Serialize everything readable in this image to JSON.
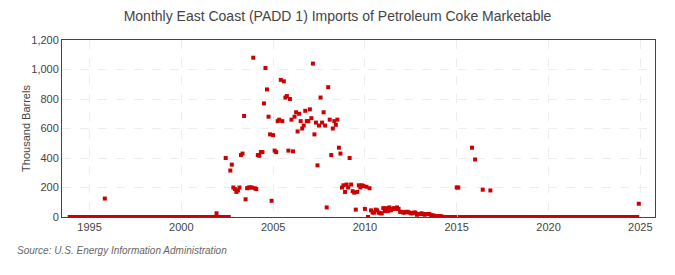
{
  "chart_data": {
    "type": "scatter",
    "title": "Monthly East Coast (PADD 1) Imports of Petroleum Coke Marketable",
    "ylabel": "Thousand Barrels",
    "annotations": [
      "Source: U.S. Energy Information Administration"
    ],
    "color": "#cc0000",
    "marker": "square",
    "grid": true,
    "xlim": [
      1993.5,
      2025.8
    ],
    "xticks": [
      1995,
      2000,
      2005,
      2010,
      2015,
      2020,
      2025
    ],
    "ylim": [
      0,
      1200
    ],
    "yticks": [
      0,
      200,
      400,
      600,
      800,
      {
        "value": 1000,
        "label": "1,000"
      },
      {
        "value": 1200,
        "label": "1,200"
      }
    ],
    "x": [
      1993.917,
      1994.0,
      1994.083,
      1994.167,
      1994.25,
      1994.333,
      1994.417,
      1994.5,
      1994.583,
      1994.667,
      1994.75,
      1994.833,
      1994.917,
      1995.0,
      1995.083,
      1995.167,
      1995.25,
      1995.333,
      1995.417,
      1995.5,
      1995.583,
      1995.667,
      1995.75,
      1995.833,
      1995.917,
      1996.0,
      1996.083,
      1996.167,
      1996.25,
      1996.333,
      1996.417,
      1996.5,
      1996.583,
      1996.667,
      1996.75,
      1996.833,
      1996.917,
      1997.0,
      1997.083,
      1997.167,
      1997.25,
      1997.333,
      1997.417,
      1997.5,
      1997.583,
      1997.667,
      1997.75,
      1997.833,
      1997.917,
      1998.0,
      1998.083,
      1998.167,
      1998.25,
      1998.333,
      1998.417,
      1998.5,
      1998.583,
      1998.667,
      1998.75,
      1998.833,
      1998.917,
      1999.0,
      1999.083,
      1999.167,
      1999.25,
      1999.333,
      1999.417,
      1999.5,
      1999.583,
      1999.667,
      1999.75,
      1999.833,
      1999.917,
      2000.0,
      2000.083,
      2000.167,
      2000.25,
      2000.333,
      2000.417,
      2000.5,
      2000.583,
      2000.667,
      2000.75,
      2000.833,
      2000.917,
      2001.0,
      2001.083,
      2001.167,
      2001.25,
      2001.333,
      2001.417,
      2001.5,
      2001.583,
      2001.667,
      2001.75,
      2001.833,
      2001.917,
      2002.0,
      2002.083,
      2002.167,
      2002.25,
      2002.333,
      2002.417,
      2002.5,
      2002.583,
      2002.667,
      2002.75,
      2002.833,
      2002.917,
      2003.0,
      2003.083,
      2003.167,
      2003.25,
      2003.333,
      2003.417,
      2003.5,
      2003.583,
      2003.667,
      2003.75,
      2003.833,
      2003.917,
      2004.0,
      2004.083,
      2004.167,
      2004.25,
      2004.333,
      2004.417,
      2004.5,
      2004.583,
      2004.667,
      2004.75,
      2004.833,
      2004.917,
      2005.0,
      2005.083,
      2005.167,
      2005.25,
      2005.333,
      2005.417,
      2005.5,
      2005.583,
      2005.667,
      2005.75,
      2005.833,
      2005.917,
      2006.0,
      2006.083,
      2006.167,
      2006.25,
      2006.333,
      2006.417,
      2006.5,
      2006.583,
      2006.667,
      2006.75,
      2006.833,
      2006.917,
      2007.0,
      2007.083,
      2007.167,
      2007.25,
      2007.333,
      2007.417,
      2007.5,
      2007.583,
      2007.667,
      2007.75,
      2007.833,
      2007.917,
      2008.0,
      2008.083,
      2008.167,
      2008.25,
      2008.333,
      2008.417,
      2008.5,
      2008.583,
      2008.667,
      2008.75,
      2008.833,
      2008.917,
      2009.0,
      2009.083,
      2009.167,
      2009.25,
      2009.333,
      2009.417,
      2009.5,
      2009.583,
      2009.667,
      2009.75,
      2009.833,
      2009.917,
      2010.0,
      2010.083,
      2010.167,
      2010.25,
      2010.333,
      2010.417,
      2010.5,
      2010.583,
      2010.667,
      2010.75,
      2010.833,
      2010.917,
      2011.0,
      2011.083,
      2011.167,
      2011.25,
      2011.333,
      2011.417,
      2011.5,
      2011.583,
      2011.667,
      2011.75,
      2011.833,
      2011.917,
      2012.0,
      2012.083,
      2012.167,
      2012.25,
      2012.333,
      2012.417,
      2012.5,
      2012.583,
      2012.667,
      2012.75,
      2012.833,
      2012.917,
      2013.0,
      2013.083,
      2013.167,
      2013.25,
      2013.333,
      2013.417,
      2013.5,
      2013.583,
      2013.667,
      2013.75,
      2013.833,
      2013.917,
      2014.0,
      2014.083,
      2014.167,
      2014.25,
      2014.333,
      2014.417,
      2014.5,
      2014.583,
      2014.667,
      2014.75,
      2014.833,
      2014.917,
      2015.0,
      2015.083,
      2015.167,
      2015.25,
      2015.333,
      2015.417,
      2015.5,
      2015.583,
      2015.667,
      2015.75,
      2015.833,
      2015.917,
      2016.0,
      2016.083,
      2016.167,
      2016.25,
      2016.333,
      2016.417,
      2016.5,
      2016.583,
      2016.667,
      2016.75,
      2016.833,
      2016.917,
      2017.0,
      2017.083,
      2017.167,
      2017.25,
      2017.333,
      2017.417,
      2017.5,
      2017.583,
      2017.667,
      2017.75,
      2017.833,
      2017.917,
      2018.0,
      2018.083,
      2018.167,
      2018.25,
      2018.333,
      2018.417,
      2018.5,
      2018.583,
      2018.667,
      2018.75,
      2018.833,
      2018.917,
      2019.0,
      2019.083,
      2019.167,
      2019.25,
      2019.333,
      2019.417,
      2019.5,
      2019.583,
      2019.667,
      2019.75,
      2019.833,
      2019.917,
      2020.0,
      2020.083,
      2020.167,
      2020.25,
      2020.333,
      2020.417,
      2020.5,
      2020.583,
      2020.667,
      2020.75,
      2020.833,
      2020.917,
      2021.0,
      2021.083,
      2021.167,
      2021.25,
      2021.333,
      2021.417,
      2021.5,
      2021.583,
      2021.667,
      2021.75,
      2021.833,
      2021.917,
      2022.0,
      2022.083,
      2022.167,
      2022.25,
      2022.333,
      2022.417,
      2022.5,
      2022.583,
      2022.667,
      2022.75,
      2022.833,
      2022.917,
      2023.0,
      2023.083,
      2023.167,
      2023.25,
      2023.333,
      2023.417,
      2023.5,
      2023.583,
      2023.667,
      2023.75,
      2023.833,
      2023.917,
      2024.0,
      2024.083,
      2024.167,
      2024.25,
      2024.333,
      2024.417,
      2024.5,
      2024.583,
      2024.667,
      2024.75,
      2024.833,
      2024.917
    ],
    "values": [
      0,
      0,
      0,
      0,
      0,
      0,
      0,
      0,
      0,
      0,
      0,
      0,
      0,
      0,
      0,
      0,
      0,
      0,
      0,
      0,
      0,
      0,
      0,
      125,
      0,
      0,
      0,
      0,
      0,
      0,
      0,
      0,
      0,
      0,
      0,
      0,
      0,
      0,
      0,
      0,
      0,
      0,
      0,
      0,
      0,
      0,
      0,
      0,
      0,
      0,
      0,
      0,
      0,
      0,
      0,
      0,
      0,
      0,
      0,
      0,
      0,
      0,
      0,
      0,
      0,
      0,
      0,
      0,
      0,
      0,
      0,
      0,
      0,
      0,
      0,
      0,
      0,
      0,
      0,
      0,
      0,
      0,
      0,
      0,
      0,
      0,
      0,
      0,
      0,
      0,
      0,
      0,
      0,
      0,
      0,
      0,
      25,
      0,
      0,
      0,
      0,
      0,
      400,
      0,
      0,
      315,
      355,
      200,
      190,
      170,
      180,
      200,
      420,
      430,
      685,
      120,
      195,
      200,
      200,
      200,
      1080,
      195,
      190,
      420,
      415,
      440,
      440,
      770,
      1010,
      865,
      680,
      560,
      110,
      555,
      450,
      440,
      650,
      660,
      930,
      650,
      920,
      810,
      820,
      450,
      800,
      660,
      445,
      680,
      710,
      580,
      700,
      650,
      600,
      620,
      720,
      650,
      650,
      730,
      670,
      1040,
      560,
      640,
      350,
      620,
      810,
      640,
      710,
      620,
      65,
      880,
      660,
      420,
      600,
      650,
      625,
      660,
      470,
      430,
      200,
      215,
      170,
      220,
      200,
      400,
      220,
      175,
      165,
      50,
      170,
      215,
      200,
      215,
      210,
      55,
      205,
      0,
      195,
      45,
      30,
      30,
      50,
      45,
      30,
      25,
      25,
      60,
      40,
      60,
      40,
      65,
      45,
      55,
      60,
      55,
      65,
      55,
      35,
      35,
      30,
      30,
      35,
      35,
      30,
      25,
      25,
      30,
      30,
      15,
      20,
      20,
      25,
      20,
      15,
      20,
      20,
      20,
      15,
      10,
      10,
      5,
      5,
      5,
      5,
      5,
      0,
      0,
      0,
      0,
      0,
      0,
      0,
      0,
      0,
      200,
      200,
      0,
      0,
      0,
      0,
      0,
      0,
      0,
      0,
      470,
      0,
      390,
      0,
      0,
      0,
      0,
      185,
      0,
      0,
      0,
      0,
      180,
      0,
      0,
      0,
      0,
      0,
      0,
      0,
      0,
      0,
      0,
      0,
      0,
      0,
      0,
      0,
      0,
      0,
      0,
      0,
      0,
      0,
      0,
      0,
      0,
      0,
      0,
      0,
      0,
      0,
      0,
      0,
      0,
      0,
      0,
      0,
      0,
      0,
      0,
      0,
      0,
      0,
      0,
      0,
      0,
      0,
      0,
      0,
      0,
      0,
      0,
      0,
      0,
      0,
      0,
      0,
      0,
      0,
      0,
      0,
      0,
      0,
      0,
      0,
      0,
      0,
      0,
      0,
      0,
      0,
      0,
      0,
      0,
      0,
      0,
      0,
      0,
      0,
      0,
      0,
      0,
      0,
      0,
      0,
      0,
      0,
      0,
      0,
      0,
      0,
      0,
      0,
      0,
      0,
      0,
      0,
      0,
      90
    ]
  }
}
